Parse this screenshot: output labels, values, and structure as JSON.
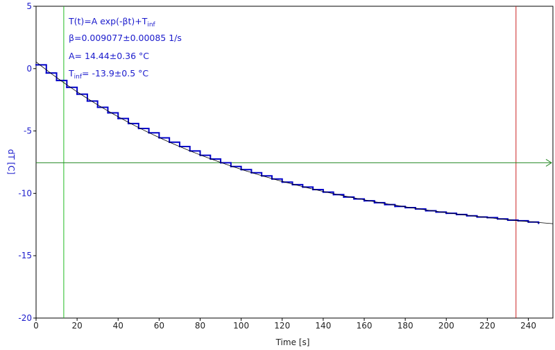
{
  "chart_data": {
    "type": "line",
    "xlabel": "Time [s]",
    "ylabel": "dT [C]",
    "xlim": [
      0,
      252
    ],
    "ylim": [
      -20,
      5
    ],
    "xticks": [
      "0",
      "20",
      "40",
      "60",
      "80",
      "100",
      "120",
      "140",
      "160",
      "180",
      "200",
      "220",
      "240"
    ],
    "xtick_values": [
      0,
      20,
      40,
      60,
      80,
      100,
      120,
      140,
      160,
      180,
      200,
      220,
      240
    ],
    "yticks": [
      "5",
      "0",
      "-5",
      "-10",
      "-15",
      "-20"
    ],
    "ytick_values": [
      5,
      0,
      -5,
      -10,
      -15,
      -20
    ],
    "annotations": {
      "formula_main": "T(t)=A exp(-βt)+T",
      "formula_sub": "inf",
      "beta": "β=0.009077±0.00085 1/s",
      "amp": "A= 14.44±0.36 °C",
      "tinf_pre": "T",
      "tinf_sub": "inf",
      "tinf_post": "= -13.9±0.5 °C"
    },
    "fit": {
      "A": 14.44,
      "beta": 0.009077,
      "Tinf": -13.9
    },
    "series": [
      {
        "name": "",
        "color": "#0000c8",
        "x": [
          0,
          5,
          10,
          15,
          20,
          25,
          30,
          35,
          40,
          45,
          50,
          55,
          60,
          65,
          70,
          75,
          80,
          85,
          90,
          95,
          100,
          105,
          110,
          115,
          120,
          125,
          130,
          135,
          140,
          145,
          150,
          155,
          160,
          165,
          170,
          175,
          180,
          185,
          190,
          195,
          200,
          205,
          210,
          215,
          220,
          225,
          230,
          235,
          240,
          245
        ],
        "y": [
          0.3,
          -0.35,
          -0.95,
          -1.5,
          -2.05,
          -2.6,
          -3.1,
          -3.55,
          -4.0,
          -4.4,
          -4.8,
          -5.15,
          -5.55,
          -5.9,
          -6.25,
          -6.6,
          -6.95,
          -7.25,
          -7.55,
          -7.85,
          -8.1,
          -8.35,
          -8.6,
          -8.85,
          -9.1,
          -9.3,
          -9.5,
          -9.7,
          -9.9,
          -10.1,
          -10.3,
          -10.45,
          -10.6,
          -10.75,
          -10.9,
          -11.05,
          -11.15,
          -11.25,
          -11.4,
          -11.5,
          -11.6,
          -11.7,
          -11.8,
          -11.9,
          -11.95,
          -12.05,
          -12.15,
          -12.2,
          -12.3,
          -12.4
        ]
      }
    ],
    "cursors": [
      {
        "name": "left-cursor",
        "axis": "x",
        "value": 13.5,
        "color": "#22bb22"
      },
      {
        "name": "right-cursor",
        "axis": "x",
        "value": 234,
        "color": "#cc2222"
      },
      {
        "name": "horizontal-cursor",
        "axis": "y",
        "value": -7.55,
        "color": "#228822"
      }
    ],
    "grid": false,
    "fit_color": "#000000"
  }
}
